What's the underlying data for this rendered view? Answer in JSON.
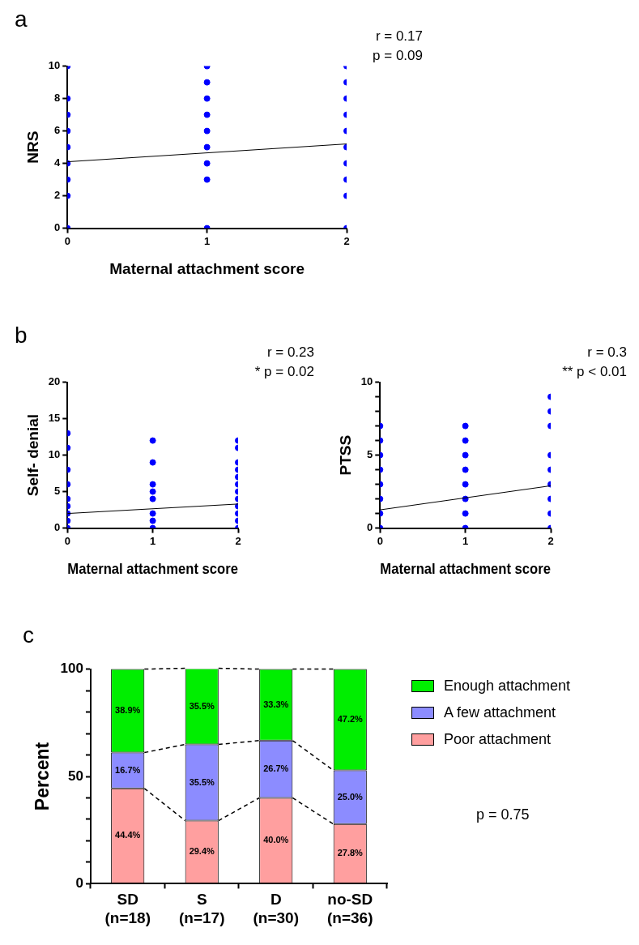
{
  "chart_data": [
    {
      "type": "scatter",
      "title": "a",
      "xlabel": "Maternal attachment score",
      "ylabel": "NRS",
      "xlim": [
        0,
        2
      ],
      "xticks": [
        0,
        1,
        2
      ],
      "ylim": [
        0,
        10
      ],
      "yticks": [
        0,
        2,
        4,
        6,
        8,
        10
      ],
      "grid": false,
      "legend": false,
      "marker": "circle",
      "annotations": [
        "r = 0.17",
        "p = 0.09"
      ],
      "series": [
        {
          "type": "scatter",
          "color": "#0000ff",
          "x": [
            0,
            0,
            0,
            0,
            0,
            0,
            0,
            0,
            0,
            1,
            1,
            1,
            1,
            1,
            1,
            1,
            1,
            1,
            2,
            2,
            2,
            2,
            2,
            2,
            2,
            2,
            2,
            2
          ],
          "values": [
            0,
            2,
            3,
            4,
            5,
            6,
            7,
            8,
            10,
            0,
            3,
            4,
            5,
            6,
            7,
            8,
            9,
            10,
            0,
            2,
            3,
            4,
            5,
            6,
            7,
            8,
            9,
            10
          ]
        },
        {
          "type": "line",
          "marker": "none",
          "color": "#000000",
          "x": [
            0,
            2
          ],
          "values": [
            4.1,
            5.2
          ]
        }
      ]
    },
    {
      "type": "scatter",
      "title": "b",
      "xlabel": "Maternal attachment score",
      "ylabel": "Self- denial",
      "xlim": [
        0,
        2
      ],
      "xticks": [
        0,
        1,
        2
      ],
      "ylim": [
        0,
        20
      ],
      "yticks": [
        0,
        5,
        10,
        15,
        20
      ],
      "grid": false,
      "legend": false,
      "marker": "circle",
      "annotations": [
        "r = 0.23",
        "* p = 0.02"
      ],
      "series": [
        {
          "type": "scatter",
          "color": "#0000ff",
          "x": [
            0,
            0,
            0,
            0,
            0,
            0,
            0,
            0,
            0,
            1,
            1,
            1,
            1,
            1,
            1,
            1,
            1,
            2,
            2,
            2,
            2,
            2,
            2,
            2,
            2,
            2,
            2,
            2,
            2
          ],
          "values": [
            0,
            1,
            2,
            3,
            4,
            6,
            8,
            11,
            13,
            0,
            1,
            2,
            4,
            5,
            6,
            9,
            12,
            0,
            1,
            2,
            3,
            4,
            5,
            6,
            7,
            8,
            9,
            11,
            12
          ]
        },
        {
          "type": "line",
          "marker": "none",
          "color": "#000000",
          "x": [
            0,
            2
          ],
          "values": [
            2.0,
            3.3
          ]
        }
      ]
    },
    {
      "type": "scatter",
      "xlabel": "Maternal attachment score",
      "ylabel": "PTSS",
      "xlim": [
        0,
        2
      ],
      "xticks": [
        0,
        1,
        2
      ],
      "ylim": [
        0,
        10
      ],
      "yticks": [
        0,
        {
          "value": 1,
          "label": null
        },
        {
          "value": 2,
          "label": null
        },
        {
          "value": 3,
          "label": null
        },
        {
          "value": 4,
          "label": null
        },
        5,
        {
          "value": 6,
          "label": null
        },
        {
          "value": 7,
          "label": null
        },
        {
          "value": 8,
          "label": null
        },
        {
          "value": 9,
          "label": null
        },
        10
      ],
      "grid": false,
      "legend": false,
      "marker": "circle",
      "annotations": [
        "r = 0.3",
        "** p < 0.01"
      ],
      "series": [
        {
          "type": "scatter",
          "color": "#0000ff",
          "x": [
            0,
            0,
            0,
            0,
            0,
            0,
            0,
            0,
            1,
            1,
            1,
            1,
            1,
            1,
            1,
            1,
            2,
            2,
            2,
            2,
            2,
            2,
            2,
            2,
            2
          ],
          "values": [
            0,
            1,
            2,
            3,
            4,
            5,
            6,
            7,
            0,
            1,
            2,
            3,
            4,
            5,
            6,
            7,
            0,
            1,
            2,
            3,
            4,
            5,
            7,
            8,
            9
          ]
        },
        {
          "type": "line",
          "marker": "none",
          "color": "#000000",
          "x": [
            0,
            2
          ],
          "values": [
            1.25,
            2.9
          ]
        }
      ]
    },
    {
      "type": "bar",
      "title": "c",
      "ylabel": "Percent",
      "stacked": true,
      "categories": [
        "SD (n=18)",
        "S (n=17)",
        "D (n=30)",
        "no-SD (n=36)"
      ],
      "ylim": [
        0,
        100
      ],
      "yticks": [
        0,
        {
          "value": 10,
          "label": null
        },
        {
          "value": 20,
          "label": null
        },
        {
          "value": 30,
          "label": null
        },
        {
          "value": 40,
          "label": null
        },
        50,
        {
          "value": 60,
          "label": null
        },
        {
          "value": 70,
          "label": null
        },
        {
          "value": 80,
          "label": null
        },
        {
          "value": 90,
          "label": null
        },
        100
      ],
      "grid": false,
      "legend": "right",
      "annotations": [
        "p = 0.75"
      ],
      "series": [
        {
          "name": "Poor attachment",
          "color": "#ff9f9f",
          "values": [
            44.4,
            29.4,
            40.0,
            27.8
          ],
          "value_labels": [
            "44.4%",
            "29.4%",
            "40.0%",
            "27.8%"
          ]
        },
        {
          "name": "A few attachment",
          "color": "#8c8cff",
          "values": [
            16.7,
            35.5,
            26.7,
            25.0
          ],
          "value_labels": [
            "16.7%",
            "35.5%",
            "26.7%",
            "25.0%"
          ]
        },
        {
          "name": "Enough attachment",
          "color": "#00ee00",
          "values": [
            38.9,
            35.5,
            33.3,
            47.2
          ],
          "value_labels": [
            "38.9%",
            "35.5%",
            "33.3%",
            "47.2%"
          ]
        }
      ]
    }
  ]
}
